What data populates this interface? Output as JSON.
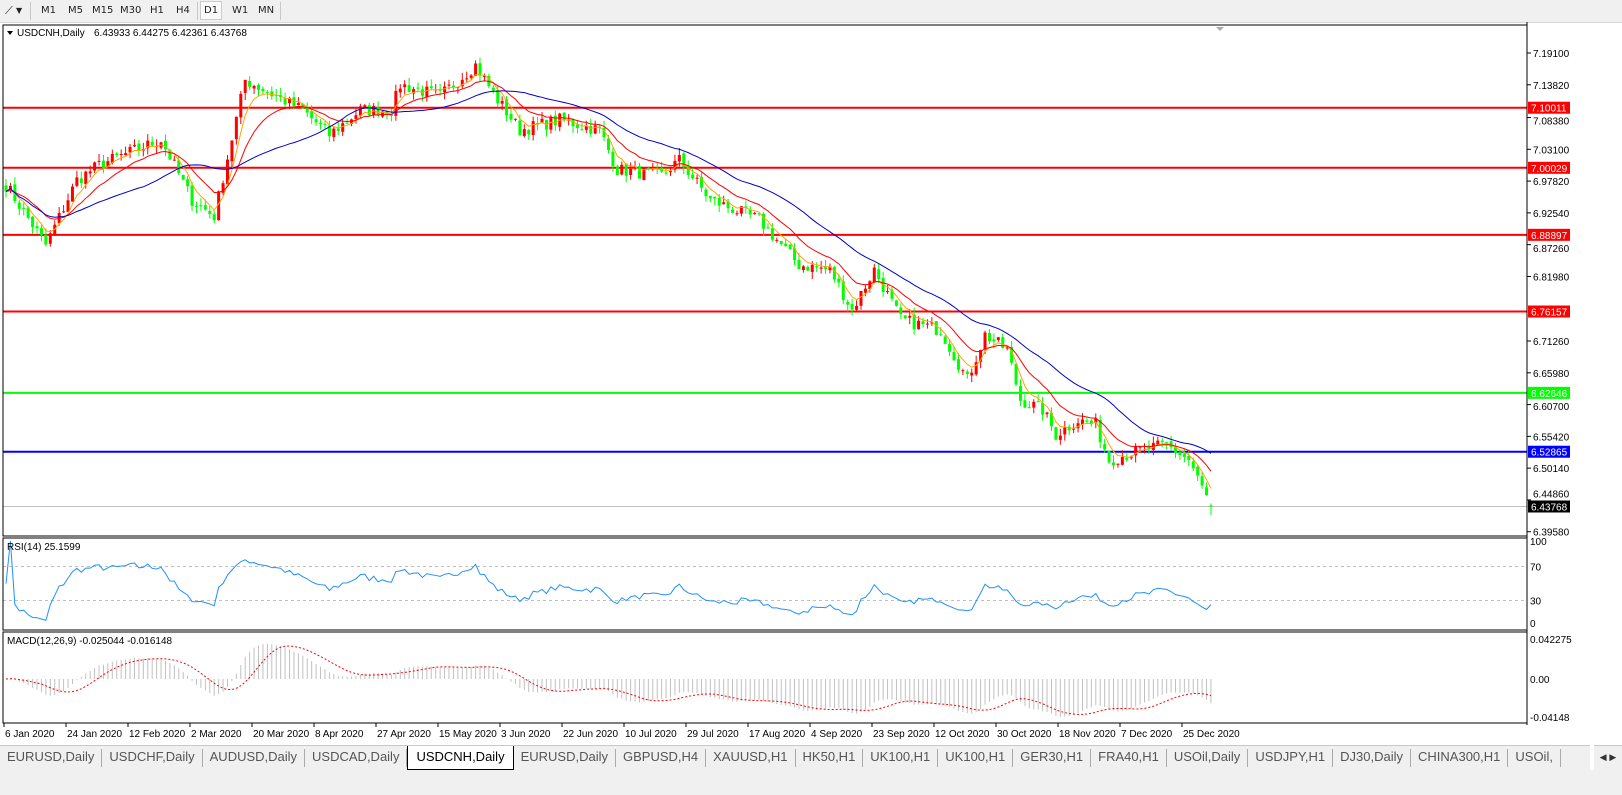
{
  "toolbar": {
    "tool_icon": "line-tools-icon",
    "timeframes": [
      "M1",
      "M5",
      "M15",
      "M30",
      "H1",
      "H4",
      "D1",
      "W1",
      "MN"
    ],
    "active_timeframe": "D1"
  },
  "header": {
    "symbol": "USDCNH,Daily",
    "ohlc": "6.43933 6.44275 6.42361 6.43768"
  },
  "price_axis": [
    "7.19100",
    "7.13820",
    "7.08380",
    "7.03100",
    "6.97820",
    "6.92540",
    "6.87260",
    "6.81980",
    "6.71260",
    "6.65980",
    "6.60700",
    "6.55420",
    "6.50140",
    "6.44860",
    "6.39580"
  ],
  "horizontal_lines": [
    {
      "label": "7.10011",
      "price": 7.10011,
      "color": "#ff0000"
    },
    {
      "label": "7.00029",
      "price": 7.00029,
      "color": "#ff0000"
    },
    {
      "label": "6.88897",
      "price": 6.88897,
      "color": "#ff0000"
    },
    {
      "label": "6.76157",
      "price": 6.76157,
      "color": "#ff0000"
    },
    {
      "label": "6.62646",
      "price": 6.62646,
      "color": "#00ff00"
    },
    {
      "label": "6.52865",
      "price": 6.52865,
      "color": "#0000ff"
    }
  ],
  "current_price": {
    "label": "6.43768",
    "price": 6.43768
  },
  "date_axis": [
    "6 Jan 2020",
    "24 Jan 2020",
    "12 Feb 2020",
    "2 Mar 2020",
    "20 Mar 2020",
    "8 Apr 2020",
    "27 Apr 2020",
    "15 May 2020",
    "3 Jun 2020",
    "22 Jun 2020",
    "10 Jul 2020",
    "29 Jul 2020",
    "17 Aug 2020",
    "4 Sep 2020",
    "23 Sep 2020",
    "12 Oct 2020",
    "30 Oct 2020",
    "18 Nov 2020",
    "7 Dec 2020",
    "25 Dec 2020"
  ],
  "rsi": {
    "label": "RSI(14) 25.1599",
    "levels": [
      "100",
      "70",
      "30",
      "0"
    ]
  },
  "macd": {
    "label": "MACD(12,26,9) -0.025044 -0.016148",
    "levels": [
      "0.042275",
      "0.00",
      "-0.04148"
    ]
  },
  "tabs": [
    {
      "label": "EURUSD,Daily"
    },
    {
      "label": "USDCHF,Daily"
    },
    {
      "label": "AUDUSD,Daily"
    },
    {
      "label": "USDCAD,Daily"
    },
    {
      "label": "USDCNH,Daily",
      "active": true
    },
    {
      "label": "EURUSD,Daily"
    },
    {
      "label": "GBPUSD,H4"
    },
    {
      "label": "XAUUSD,H1"
    },
    {
      "label": "HK50,H1"
    },
    {
      "label": "UK100,H1"
    },
    {
      "label": "UK100,H1"
    },
    {
      "label": "GER30,H1"
    },
    {
      "label": "FRA40,H1"
    },
    {
      "label": "USOil,Daily"
    },
    {
      "label": "USDJPY,H1"
    },
    {
      "label": "DJ30,Daily"
    },
    {
      "label": "CHINA300,H1"
    },
    {
      "label": "USOil,"
    }
  ],
  "chart_data": {
    "type": "candlestick",
    "symbol": "USDCNH",
    "timeframe": "Daily",
    "ylim": [
      6.3958,
      7.191
    ],
    "close_path": [
      [
        0,
        6.972
      ],
      [
        9,
        6.872
      ],
      [
        16,
        6.98
      ],
      [
        21,
        7.005
      ],
      [
        35,
        7.047
      ],
      [
        42,
        6.947
      ],
      [
        47,
        6.92
      ],
      [
        54,
        7.146
      ],
      [
        67,
        7.096
      ],
      [
        73,
        7.055
      ],
      [
        80,
        7.096
      ],
      [
        87,
        7.096
      ],
      [
        89,
        7.138
      ],
      [
        98,
        7.12
      ],
      [
        106,
        7.171
      ],
      [
        111,
        7.113
      ],
      [
        116,
        7.063
      ],
      [
        125,
        7.08
      ],
      [
        134,
        7.063
      ],
      [
        138,
        6.997
      ],
      [
        148,
        6.988
      ],
      [
        152,
        7.013
      ],
      [
        159,
        6.947
      ],
      [
        170,
        6.914
      ],
      [
        179,
        6.839
      ],
      [
        186,
        6.831
      ],
      [
        191,
        6.764
      ],
      [
        196,
        6.831
      ],
      [
        202,
        6.748
      ],
      [
        211,
        6.731
      ],
      [
        217,
        6.648
      ],
      [
        221,
        6.723
      ],
      [
        226,
        6.698
      ],
      [
        229,
        6.615
      ],
      [
        234,
        6.598
      ],
      [
        237,
        6.557
      ],
      [
        242,
        6.581
      ],
      [
        246,
        6.573
      ],
      [
        249,
        6.515
      ],
      [
        256,
        6.531
      ],
      [
        262,
        6.54
      ],
      [
        267,
        6.515
      ],
      [
        272,
        6.438
      ]
    ],
    "last_bar": {
      "open": 6.43933,
      "high": 6.44275,
      "low": 6.42361,
      "close": 6.43768
    },
    "colors": {
      "bull": "#ff0000",
      "bear": "#00ff00",
      "ma_fast": "#ffa500",
      "ma_mid": "#ff0000",
      "ma_slow": "#0000cd",
      "rsi": "#1e90ff",
      "macd_hist": "#c0c0c0",
      "macd_signal": "#ff0000"
    }
  }
}
